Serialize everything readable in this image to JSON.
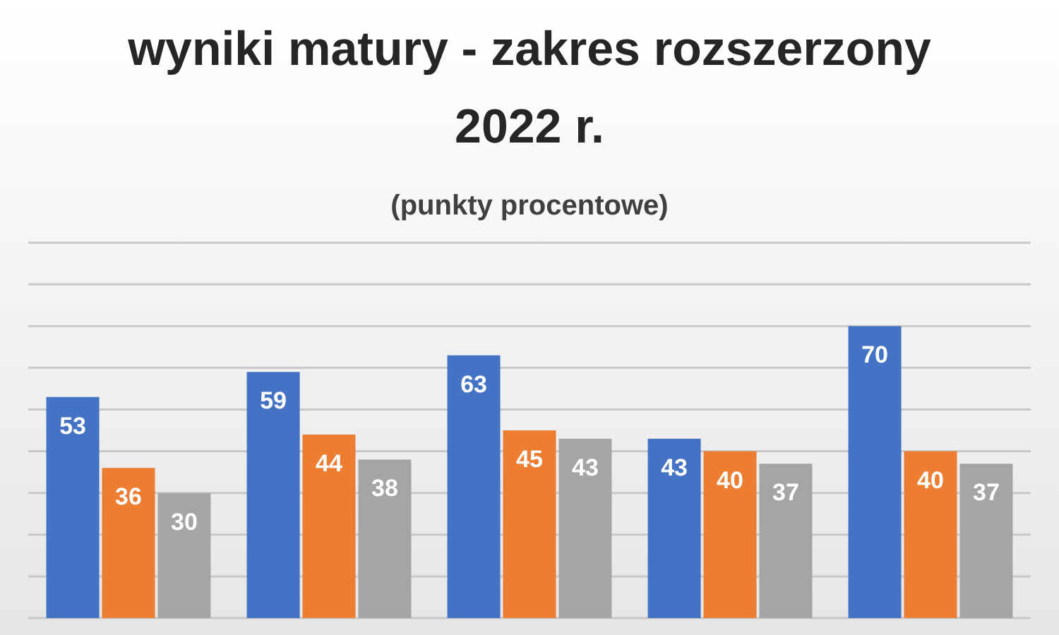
{
  "chart_data": {
    "type": "bar",
    "title": "wyniki matury - zakres rozszerzony\n2022 r.",
    "subtitle": "(punkty procentowe)",
    "categories": [
      null,
      null,
      null,
      null,
      null
    ],
    "series": [
      {
        "color": "#4472c4",
        "values": [
          53,
          59,
          63,
          43,
          70
        ]
      },
      {
        "color": "#ed7d31",
        "values": [
          36,
          44,
          45,
          40,
          40
        ]
      },
      {
        "color": "#a5a5a5",
        "values": [
          30,
          38,
          43,
          37,
          37
        ]
      }
    ],
    "data_labels": true,
    "ylim": [
      0,
      90
    ],
    "yticks": [
      {
        "value": 0,
        "label": null
      },
      {
        "value": 10,
        "label": null
      },
      {
        "value": 20,
        "label": null
      },
      {
        "value": 30,
        "label": null
      },
      {
        "value": 40,
        "label": null
      },
      {
        "value": 50,
        "label": null
      },
      {
        "value": 60,
        "label": null
      },
      {
        "value": 70,
        "label": null
      },
      {
        "value": 80,
        "label": null
      },
      {
        "value": 90,
        "label": null
      }
    ],
    "grid": "y"
  }
}
